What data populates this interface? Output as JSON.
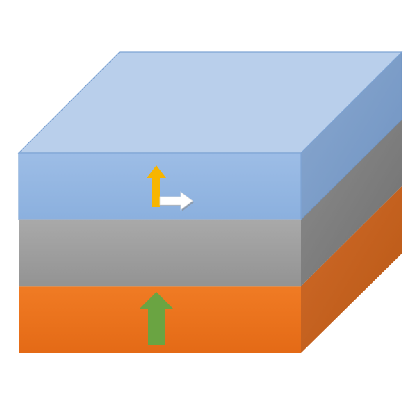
{
  "diagram": {
    "layers": [
      {
        "id": "top",
        "color": "#8fb2e0"
      },
      {
        "id": "middle",
        "color": "#9b9b9b"
      },
      {
        "id": "bottom",
        "color": "#ef7722"
      }
    ],
    "arrows": [
      {
        "id": "up-yellow",
        "color": "#f7b500",
        "icon": "arrow-up-icon"
      },
      {
        "id": "right-white",
        "color": "#ffffff",
        "icon": "arrow-right-icon"
      },
      {
        "id": "up-green",
        "color": "#6aa442",
        "icon": "arrow-up-icon"
      }
    ]
  }
}
